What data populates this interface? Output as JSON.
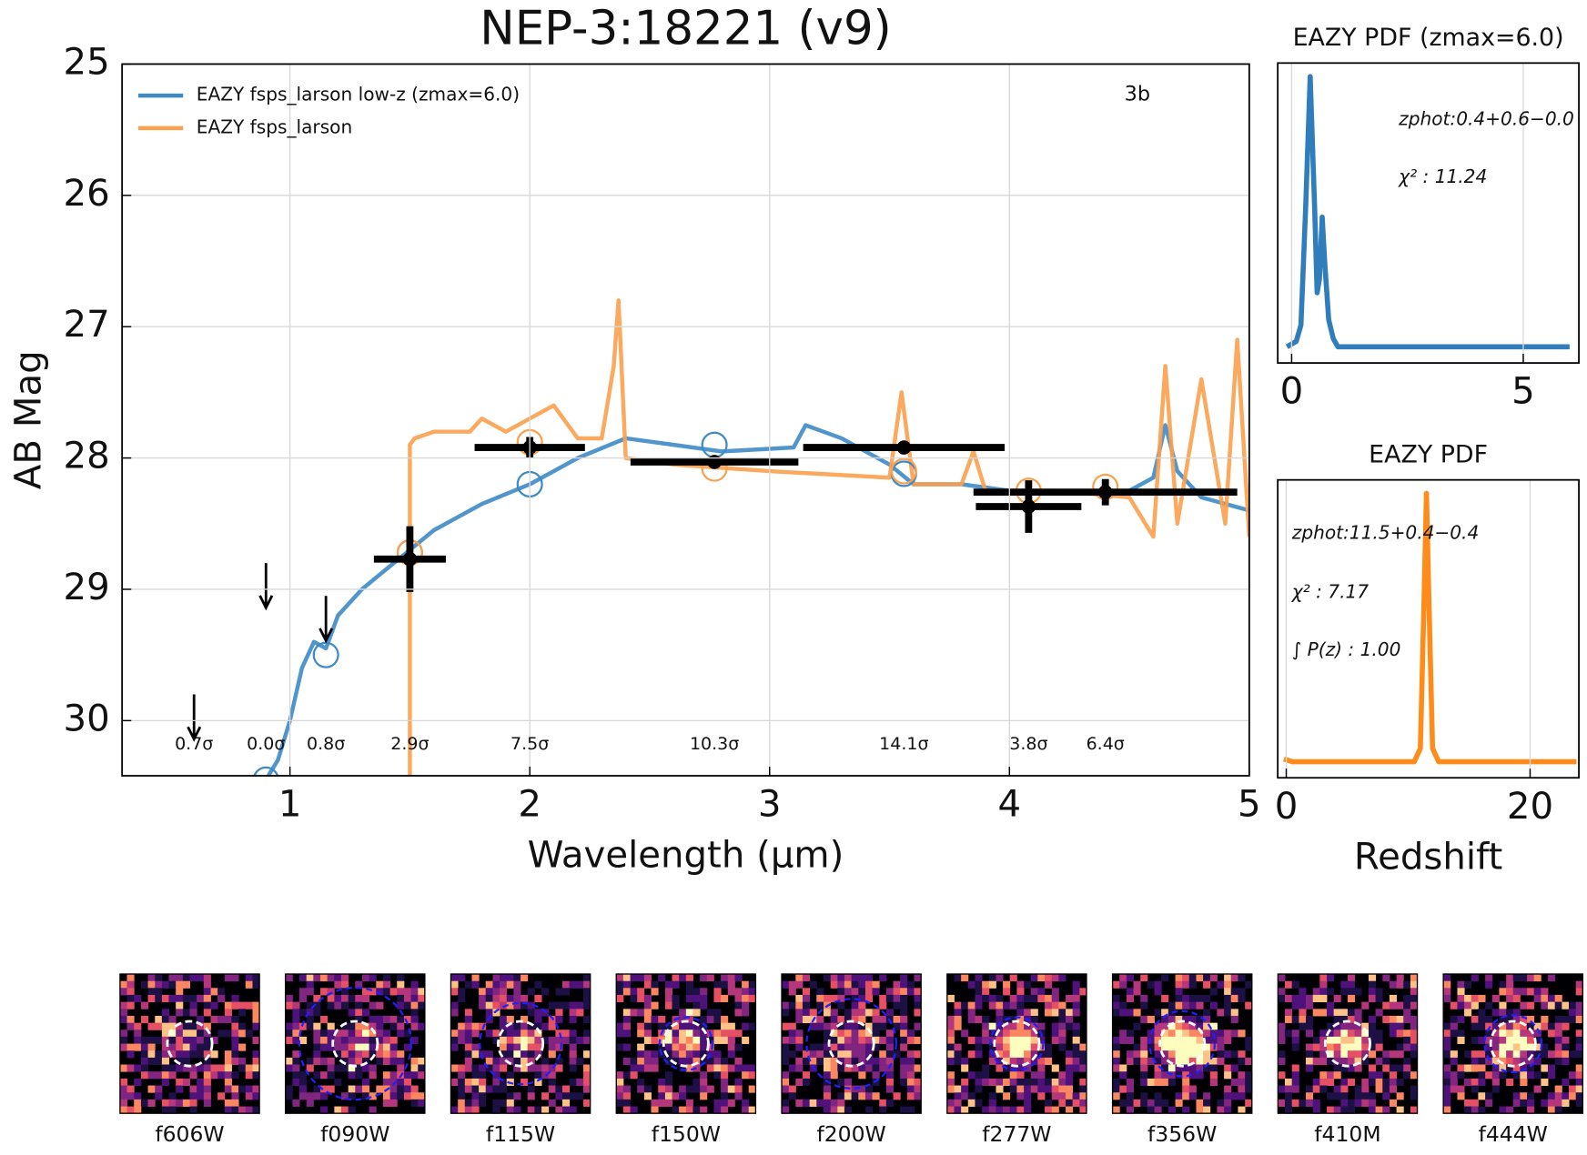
{
  "chart_data": [
    {
      "type": "sed",
      "title": "NEP-3:18221 (v9)",
      "xlabel": "Wavelength (µm)",
      "ylabel": "AB Mag",
      "annotation": "3b",
      "xlim": [
        0.3,
        5
      ],
      "ylim": [
        30.42,
        25
      ],
      "xticks": [
        1,
        2,
        3,
        4,
        5
      ],
      "yticks": [
        25,
        26,
        27,
        28,
        29,
        30
      ],
      "grid": true,
      "legend": "upper left",
      "series": [
        {
          "name": "EAZY fsps_larson low-z (zmax=6.0)",
          "color": "#3d8ac6",
          "x": [
            0.9,
            0.95,
            1.0,
            1.05,
            1.1,
            1.15,
            1.2,
            1.3,
            1.4,
            1.5,
            1.6,
            1.8,
            2.0,
            2.2,
            2.4,
            2.6,
            2.8,
            3.0,
            3.1,
            3.15,
            3.3,
            3.5,
            3.6,
            3.8,
            4.0,
            4.2,
            4.5,
            4.6,
            4.65,
            4.7,
            4.8,
            5.0
          ],
          "values": [
            30.45,
            30.3,
            30.0,
            29.6,
            29.4,
            29.45,
            29.2,
            29.0,
            28.85,
            28.7,
            28.55,
            28.35,
            28.2,
            28.0,
            27.85,
            27.9,
            27.95,
            27.93,
            27.92,
            27.75,
            27.85,
            28.05,
            28.2,
            28.2,
            28.25,
            28.27,
            28.25,
            28.15,
            27.75,
            28.1,
            28.3,
            28.4
          ],
          "model_x": [
            0.9,
            1.15,
            1.5,
            2.0,
            2.77,
            3.56
          ],
          "model_values": [
            30.45,
            29.5,
            28.72,
            28.2,
            27.9,
            28.12
          ]
        },
        {
          "name": "EAZY fsps_larson",
          "color": "#fba04c",
          "x": [
            1.5,
            1.5,
            1.52,
            1.6,
            1.75,
            1.8,
            1.9,
            2.1,
            2.2,
            2.3,
            2.35,
            2.37,
            2.4,
            2.6,
            3.0,
            3.5,
            3.55,
            3.6,
            3.8,
            3.85,
            3.9,
            4.2,
            4.5,
            4.6,
            4.65,
            4.7,
            4.8,
            4.9,
            4.95,
            5.0
          ],
          "values": [
            30.45,
            27.9,
            27.85,
            27.8,
            27.8,
            27.7,
            27.8,
            27.6,
            27.85,
            27.85,
            27.3,
            26.8,
            28.0,
            28.05,
            28.1,
            28.15,
            27.5,
            28.2,
            28.2,
            27.95,
            28.25,
            28.25,
            28.3,
            28.6,
            27.3,
            28.5,
            27.4,
            28.5,
            27.1,
            28.6
          ],
          "model_x": [
            1.5,
            2.0,
            2.77,
            3.56,
            4.08,
            4.4
          ],
          "model_values": [
            28.72,
            27.88,
            28.08,
            28.1,
            28.25,
            28.22
          ]
        }
      ],
      "photometry": {
        "x": [
          0.6,
          0.9,
          1.15,
          1.5,
          2.0,
          2.77,
          3.56,
          4.08,
          4.4
        ],
        "values": [
          29.8,
          28.8,
          29.05,
          28.77,
          27.92,
          28.03,
          27.92,
          28.37,
          28.26
        ],
        "yerr": [
          null,
          null,
          null,
          0.25,
          0.08,
          0.04,
          0.03,
          0.2,
          0.1
        ],
        "xerr": [
          null,
          null,
          null,
          0.15,
          0.23,
          0.35,
          0.42,
          0.22,
          0.55
        ],
        "upper_limit": [
          true,
          true,
          true,
          false,
          false,
          false,
          false,
          false,
          false
        ],
        "snr_labels": [
          "0.7σ",
          "0.0σ",
          "0.8σ",
          "2.9σ",
          "7.5σ",
          "10.3σ",
          "14.1σ",
          "3.8σ",
          "6.4σ"
        ]
      }
    },
    {
      "type": "line",
      "title": "EAZY PDF (zmax=6.0)",
      "xlim": [
        -0.3,
        6.2
      ],
      "ylim": [
        -0.06,
        1.05
      ],
      "xticks": [
        0,
        5
      ],
      "grid": true,
      "annotations": [
        "zphot:0.4+0.6−0.0",
        "χ² : 11.24"
      ],
      "series": [
        {
          "color": "#2f7dbb",
          "x": [
            -0.1,
            0.1,
            0.2,
            0.3,
            0.4,
            0.5,
            0.55,
            0.6,
            0.66,
            0.72,
            0.8,
            0.9,
            1.0,
            1.2,
            3,
            6.0
          ],
          "values": [
            0.0,
            0.02,
            0.08,
            0.5,
            1.0,
            0.5,
            0.2,
            0.25,
            0.48,
            0.3,
            0.1,
            0.03,
            0.0,
            0.0,
            0.0,
            0.0
          ]
        }
      ]
    },
    {
      "type": "line",
      "title": "EAZY PDF",
      "xlabel": "Redshift",
      "xlim": [
        -0.7,
        24
      ],
      "ylim": [
        -0.06,
        1.05
      ],
      "xticks": [
        0,
        20
      ],
      "grid": true,
      "annotations": [
        "zphot:11.5+0.4−0.4",
        "χ² : 7.17",
        "∫ P(z) : 1.00"
      ],
      "series": [
        {
          "color": "#ff8c1a",
          "x": [
            -0.2,
            0.5,
            10.5,
            11.0,
            11.3,
            11.5,
            11.7,
            12.0,
            12.5,
            23.8
          ],
          "values": [
            0.01,
            0.0,
            0.0,
            0.05,
            0.6,
            1.0,
            0.6,
            0.05,
            0.0,
            0.0
          ]
        }
      ]
    }
  ],
  "cutouts": {
    "labels": [
      "f606W",
      "f090W",
      "f115W",
      "f150W",
      "f200W",
      "f277W",
      "f356W",
      "f410M",
      "f444W"
    ]
  }
}
